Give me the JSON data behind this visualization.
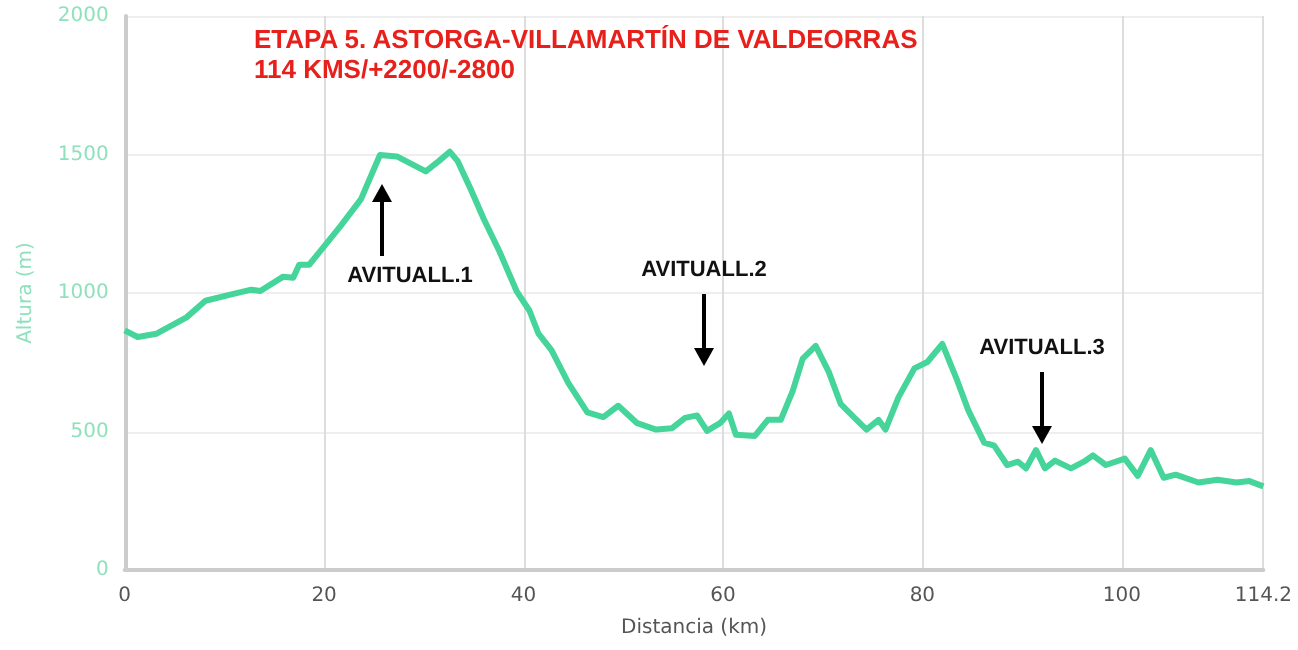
{
  "chart_data": {
    "type": "line",
    "title": "ETAPA 5. ASTORGA-VILLAMARTÍN DE VALDEORRAS",
    "subtitle": "114 KMS/+2200/-2800",
    "xlabel": "Distancia (km)",
    "ylabel": "Altura (m)",
    "xlim": [
      0,
      114.2
    ],
    "xticks": [
      0,
      20,
      40,
      60,
      80,
      100,
      114.2
    ],
    "ylim": [
      0,
      2000
    ],
    "yticks": [
      0,
      500,
      1000,
      1500,
      2000
    ],
    "grid": true,
    "marker": "none",
    "annotations": [
      "AVITUALL.1",
      "AVITUALL.2",
      "AVITUALL.3"
    ],
    "series": [
      {
        "color": "#45d49a",
        "x": [
          0,
          1.3,
          3.2,
          6.2,
          8.1,
          10.7,
          12.7,
          13.6,
          15.9,
          16.9,
          17.5,
          18.5,
          20.1,
          21.7,
          23.7,
          25.6,
          27.3,
          28.6,
          30.2,
          31.5,
          32.6,
          33.4,
          34.7,
          36.0,
          37.6,
          39.3,
          40.6,
          41.5,
          42.8,
          44.5,
          46.4,
          48.0,
          49.5,
          51.4,
          53.3,
          54.9,
          56.2,
          57.4,
          58.4,
          59.7,
          60.6,
          61.3,
          63.2,
          64.5,
          65.8,
          67.0,
          68.0,
          69.3,
          70.6,
          71.8,
          73.1,
          74.4,
          75.6,
          76.3,
          77.6,
          79.2,
          80.5,
          82.0,
          83.4,
          84.6,
          86.2,
          87.2,
          88.5,
          89.6,
          90.4,
          91.4,
          92.3,
          93.3,
          94.9,
          96.2,
          97.1,
          98.4,
          100.3,
          101.6,
          102.9,
          104.2,
          105.4,
          107.7,
          109.6,
          111.5,
          112.8,
          114.2
        ],
        "values": [
          865,
          841,
          853,
          912,
          972,
          995,
          1012,
          1007,
          1059,
          1055,
          1102,
          1102,
          1173,
          1244,
          1339,
          1498,
          1493,
          1469,
          1439,
          1476,
          1510,
          1476,
          1375,
          1268,
          1149,
          1007,
          936,
          853,
          794,
          675,
          569,
          552,
          593,
          530,
          507,
          512,
          549,
          558,
          502,
          530,
          565,
          488,
          484,
          542,
          542,
          647,
          763,
          809,
          716,
          600,
          553,
          507,
          542,
          507,
          623,
          728,
          751,
          816,
          693,
          577,
          460,
          449,
          379,
          391,
          367,
          433,
          367,
          395,
          367,
          391,
          414,
          379,
          402,
          340,
          433,
          333,
          344,
          316,
          326,
          316,
          321,
          302
        ]
      }
    ]
  }
}
